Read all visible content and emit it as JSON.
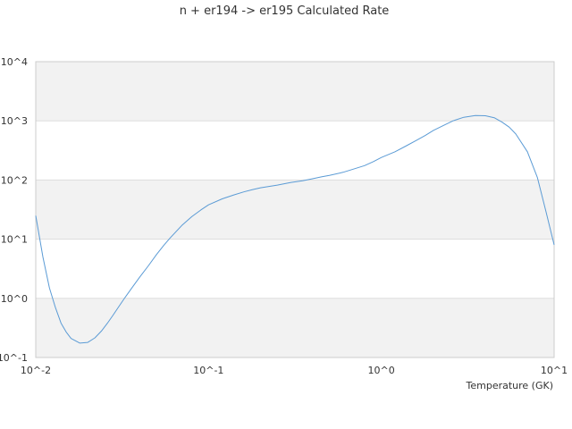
{
  "chart_data": {
    "type": "line",
    "title": "n + er194 -> er195 Calculated Rate",
    "xlabel": "Temperature (GK)",
    "ylabel": "",
    "x_scale": "log",
    "y_scale": "log",
    "xlim": [
      0.01,
      10
    ],
    "ylim": [
      0.1,
      10000
    ],
    "x_ticks": [
      {
        "value": 0.01,
        "label": "10^-2"
      },
      {
        "value": 0.1,
        "label": "10^-1"
      },
      {
        "value": 1,
        "label": "10^0"
      },
      {
        "value": 10,
        "label": "10^1"
      }
    ],
    "y_ticks": [
      {
        "value": 0.1,
        "label": "10^-1"
      },
      {
        "value": 1,
        "label": "10^0"
      },
      {
        "value": 10,
        "label": "10^1"
      },
      {
        "value": 100,
        "label": "10^2"
      },
      {
        "value": 1000,
        "label": "10^3"
      },
      {
        "value": 10000,
        "label": "10^4"
      }
    ],
    "grid": "horizontal bands",
    "colors": {
      "line": "#5b9bd5",
      "band_alt": "#f2f2f2",
      "grid": "#dddddd",
      "axis": "#cccccc",
      "text": "#333333"
    },
    "series": [
      {
        "name": "",
        "x": [
          0.01,
          0.011,
          0.012,
          0.013,
          0.014,
          0.015,
          0.016,
          0.018,
          0.02,
          0.022,
          0.024,
          0.026,
          0.028,
          0.03,
          0.033,
          0.036,
          0.04,
          0.045,
          0.05,
          0.055,
          0.06,
          0.07,
          0.08,
          0.09,
          0.1,
          0.12,
          0.14,
          0.16,
          0.18,
          0.2,
          0.25,
          0.3,
          0.35,
          0.4,
          0.45,
          0.5,
          0.6,
          0.7,
          0.8,
          0.9,
          1.0,
          1.2,
          1.4,
          1.6,
          1.8,
          2.0,
          2.3,
          2.6,
          3.0,
          3.5,
          4.0,
          4.5,
          5.0,
          5.5,
          6.0,
          7.0,
          8.0,
          9.0,
          10.0
        ],
        "y": [
          25,
          5,
          1.5,
          0.7,
          0.38,
          0.27,
          0.21,
          0.175,
          0.18,
          0.215,
          0.28,
          0.38,
          0.52,
          0.7,
          1.05,
          1.5,
          2.3,
          3.6,
          5.5,
          7.8,
          10.5,
          17,
          24,
          31,
          38,
          48,
          56,
          63,
          69,
          74,
          82,
          91,
          97,
          105,
          113,
          120,
          135,
          155,
          175,
          205,
          240,
          300,
          380,
          470,
          570,
          690,
          840,
          1000,
          1150,
          1230,
          1220,
          1130,
          950,
          780,
          600,
          300,
          110,
          28,
          8
        ]
      }
    ]
  }
}
